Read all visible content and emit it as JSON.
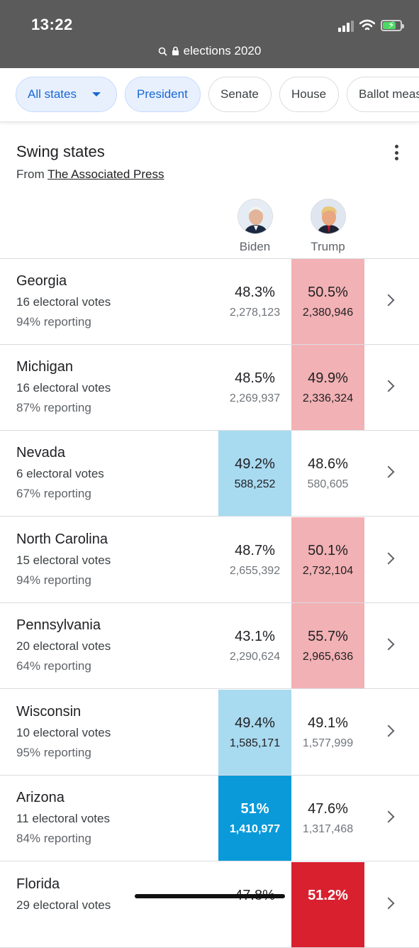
{
  "status_bar": {
    "time": "13:22"
  },
  "url_bar": {
    "url": "elections 2020"
  },
  "filters": [
    {
      "label": "All states",
      "active": true,
      "dropdown": true
    },
    {
      "label": "President",
      "active": true
    },
    {
      "label": "Senate",
      "active": false
    },
    {
      "label": "House",
      "active": false
    },
    {
      "label": "Ballot meas",
      "active": false
    }
  ],
  "card": {
    "title": "Swing states",
    "source_prefix": "From",
    "source_link": "The Associated Press"
  },
  "candidates": {
    "biden": {
      "name": "Biden"
    },
    "trump": {
      "name": "Trump"
    }
  },
  "colors": {
    "biden_light": "#a8daf0",
    "biden_dark": "#0b9ad9",
    "trump_light": "#f2b1b4",
    "trump_dark": "#d9202f"
  },
  "states": [
    {
      "name": "Georgia",
      "electoral": "16 electoral votes",
      "reporting": "94% reporting",
      "biden_pct": "48.3%",
      "biden_votes": "2,278,123",
      "trump_pct": "50.5%",
      "trump_votes": "2,380,946",
      "leader": "trump",
      "called": false
    },
    {
      "name": "Michigan",
      "electoral": "16 electoral votes",
      "reporting": "87% reporting",
      "biden_pct": "48.5%",
      "biden_votes": "2,269,937",
      "trump_pct": "49.9%",
      "trump_votes": "2,336,324",
      "leader": "trump",
      "called": false
    },
    {
      "name": "Nevada",
      "electoral": "6 electoral votes",
      "reporting": "67% reporting",
      "biden_pct": "49.2%",
      "biden_votes": "588,252",
      "trump_pct": "48.6%",
      "trump_votes": "580,605",
      "leader": "biden",
      "called": false
    },
    {
      "name": "North Carolina",
      "electoral": "15 electoral votes",
      "reporting": "94% reporting",
      "biden_pct": "48.7%",
      "biden_votes": "2,655,392",
      "trump_pct": "50.1%",
      "trump_votes": "2,732,104",
      "leader": "trump",
      "called": false
    },
    {
      "name": "Pennsylvania",
      "electoral": "20 electoral votes",
      "reporting": "64% reporting",
      "biden_pct": "43.1%",
      "biden_votes": "2,290,624",
      "trump_pct": "55.7%",
      "trump_votes": "2,965,636",
      "leader": "trump",
      "called": false
    },
    {
      "name": "Wisconsin",
      "electoral": "10 electoral votes",
      "reporting": "95% reporting",
      "biden_pct": "49.4%",
      "biden_votes": "1,585,171",
      "trump_pct": "49.1%",
      "trump_votes": "1,577,999",
      "leader": "biden",
      "called": false
    },
    {
      "name": "Arizona",
      "electoral": "11 electoral votes",
      "reporting": "84% reporting",
      "biden_pct": "51%",
      "biden_votes": "1,410,977",
      "trump_pct": "47.6%",
      "trump_votes": "1,317,468",
      "leader": "biden",
      "called": true
    },
    {
      "name": "Florida",
      "electoral": "29 electoral votes",
      "reporting": "",
      "biden_pct": "47.8%",
      "biden_votes": "",
      "trump_pct": "51.2%",
      "trump_votes": "",
      "leader": "trump",
      "called": true
    }
  ],
  "icons": {
    "search": "search-icon",
    "lock": "lock-icon",
    "more": "more-vert-icon",
    "chevron": "chevron-right-icon",
    "wifi": "wifi-icon",
    "battery": "battery-charging-icon",
    "signal": "cellular-signal-icon"
  }
}
